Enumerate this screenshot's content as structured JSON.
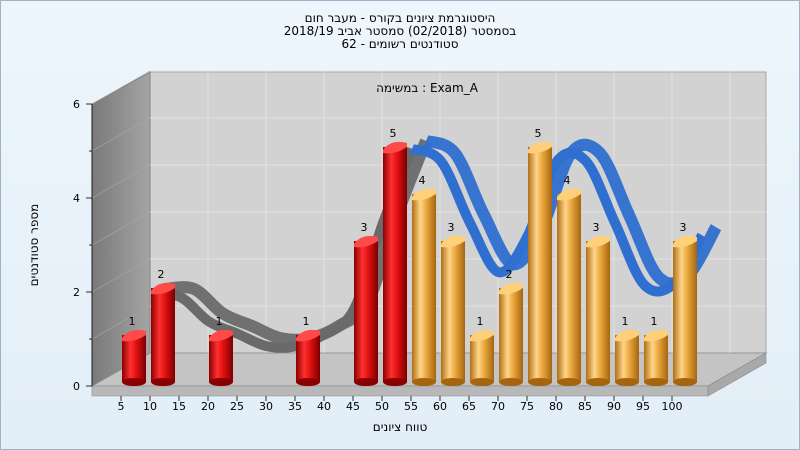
{
  "chart_data": {
    "type": "bar",
    "title_lines": [
      "היסטוגרמת ציונים בקורס - מעבר חום",
      "בסמסטר  (02/2018)  סמסטר אביב 2018/19",
      "סטודנטים רשומים - 62"
    ],
    "annotation": "במשימה : Exam_A",
    "xlabel": "טווח ציונים",
    "ylabel": "מספר סטודנטים",
    "categories": [
      "5",
      "10",
      "15",
      "20",
      "25",
      "30",
      "35",
      "40",
      "45",
      "50",
      "55",
      "60",
      "65",
      "70",
      "75",
      "80",
      "85",
      "90",
      "95",
      "100"
    ],
    "values": [
      1,
      2,
      0,
      1,
      0,
      0,
      1,
      0,
      3,
      5,
      4,
      3,
      1,
      2,
      5,
      4,
      3,
      1,
      1,
      3
    ],
    "bar_colors_by_index": [
      "red",
      "red",
      "red",
      "red",
      "red",
      "red",
      "red",
      "red",
      "red",
      "red",
      "gold",
      "gold",
      "gold",
      "gold",
      "gold",
      "gold",
      "gold",
      "gold",
      "gold",
      "gold"
    ],
    "ylim": [
      0,
      6
    ],
    "yticks": [
      0,
      2,
      4,
      6
    ],
    "grid": true,
    "colors": {
      "red": "#e01010",
      "gold": "#e9a73c",
      "curve_fail": "#6a6a6a",
      "curve_pass": "#2e6fcf",
      "wall_left": "#8e8e8e",
      "wall_back": "#d2d2d2",
      "floor": "#c4c4c4",
      "grid": "#e6e6e6"
    }
  }
}
